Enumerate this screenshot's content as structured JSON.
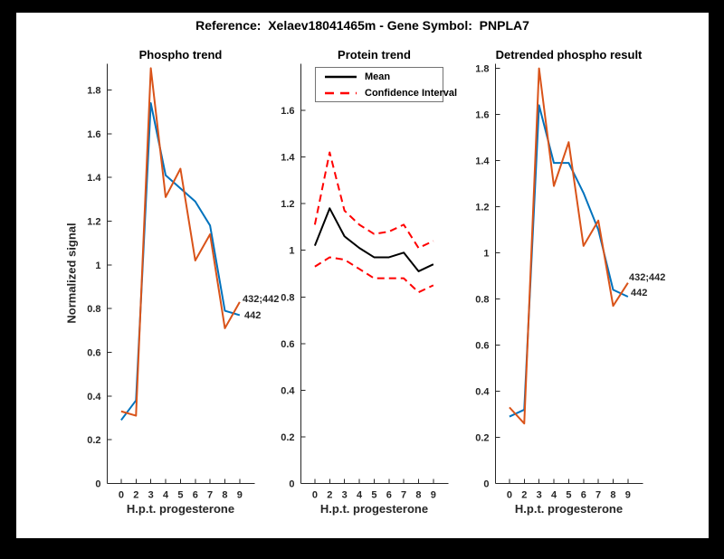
{
  "figure_title": "Reference:  Xelaev18041465m - Gene Symbol:  PNPLA7",
  "colors": {
    "blue": "#0072BD",
    "orange": "#D95319",
    "black": "#000000",
    "red": "#FF0000",
    "axis": "#262626",
    "background": "#000000",
    "figure_background": "#FFFFFF"
  },
  "chart_data": [
    {
      "type": "line",
      "title": "Phospho trend",
      "xlabel": "H.p.t. progesterone",
      "ylabel": "Normalized signal",
      "categories": [
        "0",
        "2",
        "3",
        "4",
        "5",
        "6",
        "7",
        "8",
        "9"
      ],
      "ylim": [
        0,
        1.92
      ],
      "yticks": [
        0,
        0.2,
        0.4,
        0.6,
        0.8,
        1,
        1.2,
        1.4,
        1.6,
        1.8
      ],
      "grid": false,
      "series": [
        {
          "name": "442",
          "color": "blue",
          "style": "solid",
          "values": [
            0.29,
            0.38,
            1.74,
            1.41,
            1.35,
            1.29,
            1.18,
            0.79,
            0.77
          ]
        },
        {
          "name": "432;442",
          "color": "orange",
          "style": "solid",
          "values": [
            0.33,
            0.31,
            1.9,
            1.31,
            1.44,
            1.02,
            1.14,
            0.71,
            0.83
          ]
        }
      ],
      "end_labels": [
        "432;442",
        "442"
      ]
    },
    {
      "type": "line",
      "title": "Protein trend",
      "xlabel": "H.p.t. progesterone",
      "ylabel": "",
      "categories": [
        "0",
        "2",
        "3",
        "4",
        "5",
        "6",
        "7",
        "8",
        "9"
      ],
      "ylim": [
        0,
        1.8
      ],
      "yticks": [
        0,
        0.2,
        0.4,
        0.6,
        0.8,
        1,
        1.2,
        1.4,
        1.6
      ],
      "grid": false,
      "legend_position": "northwest",
      "legend_entries": [
        "Mean",
        "Confidence Interval"
      ],
      "series": [
        {
          "name": "Mean",
          "color": "black",
          "style": "solid",
          "values": [
            1.02,
            1.18,
            1.06,
            1.01,
            0.97,
            0.97,
            0.99,
            0.91,
            0.94
          ]
        },
        {
          "name": "Confidence Interval",
          "color": "red",
          "style": "dashed",
          "values": [
            1.11,
            1.42,
            1.17,
            1.11,
            1.07,
            1.08,
            1.11,
            1.01,
            1.04
          ]
        },
        {
          "name": "Confidence Interval",
          "color": "red",
          "style": "dashed",
          "values": [
            0.93,
            0.97,
            0.96,
            0.92,
            0.88,
            0.88,
            0.88,
            0.82,
            0.85
          ]
        }
      ]
    },
    {
      "type": "line",
      "title": "Detrended phospho result",
      "xlabel": "H.p.t. progesterone",
      "ylabel": "",
      "categories": [
        "0",
        "2",
        "3",
        "4",
        "5",
        "6",
        "7",
        "8",
        "9"
      ],
      "ylim": [
        0,
        1.82
      ],
      "yticks": [
        0,
        0.2,
        0.4,
        0.6,
        0.8,
        1,
        1.2,
        1.4,
        1.6,
        1.8
      ],
      "grid": false,
      "series": [
        {
          "name": "442",
          "color": "blue",
          "style": "solid",
          "values": [
            0.29,
            0.32,
            1.64,
            1.39,
            1.39,
            1.26,
            1.1,
            0.84,
            0.81
          ]
        },
        {
          "name": "432;442",
          "color": "orange",
          "style": "solid",
          "values": [
            0.33,
            0.26,
            1.8,
            1.29,
            1.48,
            1.03,
            1.14,
            0.77,
            0.87
          ]
        }
      ],
      "end_labels": [
        "432;442",
        "442"
      ]
    }
  ]
}
